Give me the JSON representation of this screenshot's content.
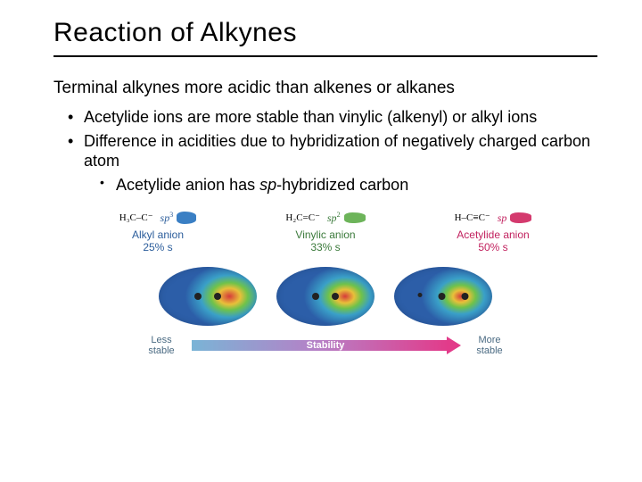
{
  "title": "Reaction of Alkynes",
  "subhead": "Terminal alkynes more acidic than alkenes or alkanes",
  "bullets": {
    "b1": "Acetylide ions are more stable than vinylic (alkenyl) or alkyl ions",
    "b2": "Difference in acidities due to hybridization of negatively charged carbon atom",
    "sub1_prefix": "Acetylide anion has ",
    "sub1_sp": "sp",
    "sub1_suffix": "-hybridized carbon"
  },
  "anions": {
    "alkyl": {
      "sp_label": "sp",
      "sp_sup": "3",
      "sp_color": "#2b5d9b",
      "lobe_color": "#3a7fc4",
      "struct": "H₃C–C⁻",
      "caption_name": "Alkyl anion",
      "caption_pct": "25% s"
    },
    "vinyl": {
      "sp_label": "sp",
      "sp_sup": "2",
      "sp_color": "#3b7a3b",
      "lobe_color": "#6db45a",
      "struct": "H₂C=C⁻",
      "caption_name": "Vinylic anion",
      "caption_pct": "33% s"
    },
    "acetylide": {
      "sp_label": "sp",
      "sp_sup": "",
      "sp_color": "#c2225f",
      "lobe_color": "#d43a6e",
      "struct": "H–C≡C⁻",
      "caption_name": "Acetylide anion",
      "caption_pct": "50% s"
    }
  },
  "density_maps": {
    "alkyl_bg": "radial-gradient(ellipse 45% 55% at 72% 50%, #d63a3a 0%, #e8c03a 25%, #6fc24a 42%, #3aa0c8 65%, #2c5ea8 100%)",
    "vinyl_bg": "radial-gradient(ellipse 42% 52% at 70% 50%, #d63a3a 0%, #e8c03a 22%, #6fc24a 40%, #3aa0c8 62%, #2c5ea8 100%)",
    "acetylide_bg": "radial-gradient(ellipse 40% 50% at 68% 50%, #d63a3a 0%, #e8c03a 20%, #6fc24a 38%, #3aa0c8 60%, #2c5ea8 100%)"
  },
  "stability": {
    "less": "Less stable",
    "more": "More stable",
    "bar_label": "Stability",
    "gradient_start": "#7ab4d6",
    "gradient_mid": "#b77fc6",
    "gradient_end": "#e23b8a"
  },
  "colors": {
    "text": "#000000",
    "rule": "#000000",
    "bg": "#ffffff"
  }
}
